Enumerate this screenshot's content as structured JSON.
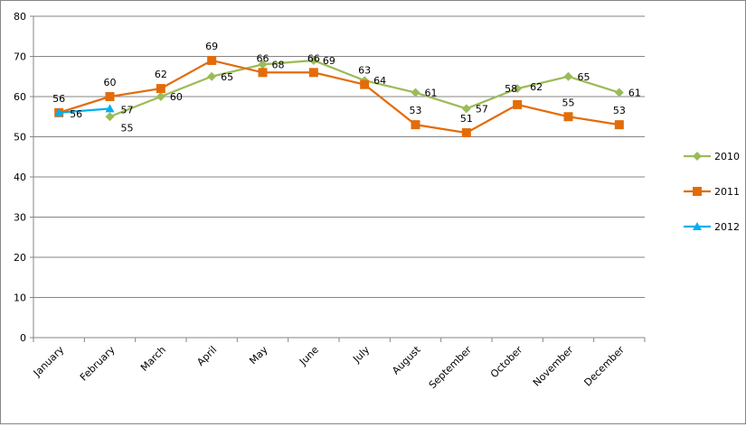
{
  "chart_data": {
    "type": "line",
    "categories": [
      "January",
      "February",
      "March",
      "April",
      "May",
      "June",
      "July",
      "August",
      "September",
      "October",
      "November",
      "December"
    ],
    "ylim": [
      0,
      80
    ],
    "yticks": [
      0,
      10,
      20,
      30,
      40,
      50,
      60,
      70,
      80
    ],
    "grid": true,
    "legend": "right",
    "series": [
      {
        "name": "2010",
        "color": "#9BBB59",
        "marker": "diamond",
        "values": [
          null,
          55,
          60,
          65,
          68,
          69,
          64,
          61,
          57,
          62,
          65,
          61
        ]
      },
      {
        "name": "2011",
        "color": "#E36C0A",
        "marker": "square",
        "values": [
          56,
          60,
          62,
          69,
          66,
          66,
          63,
          53,
          51,
          58,
          55,
          53
        ]
      },
      {
        "name": "2012",
        "color": "#00B0F0",
        "marker": "triangle",
        "values": [
          56,
          57,
          null,
          null,
          null,
          null,
          null,
          null,
          null,
          null,
          null,
          null
        ]
      }
    ]
  }
}
